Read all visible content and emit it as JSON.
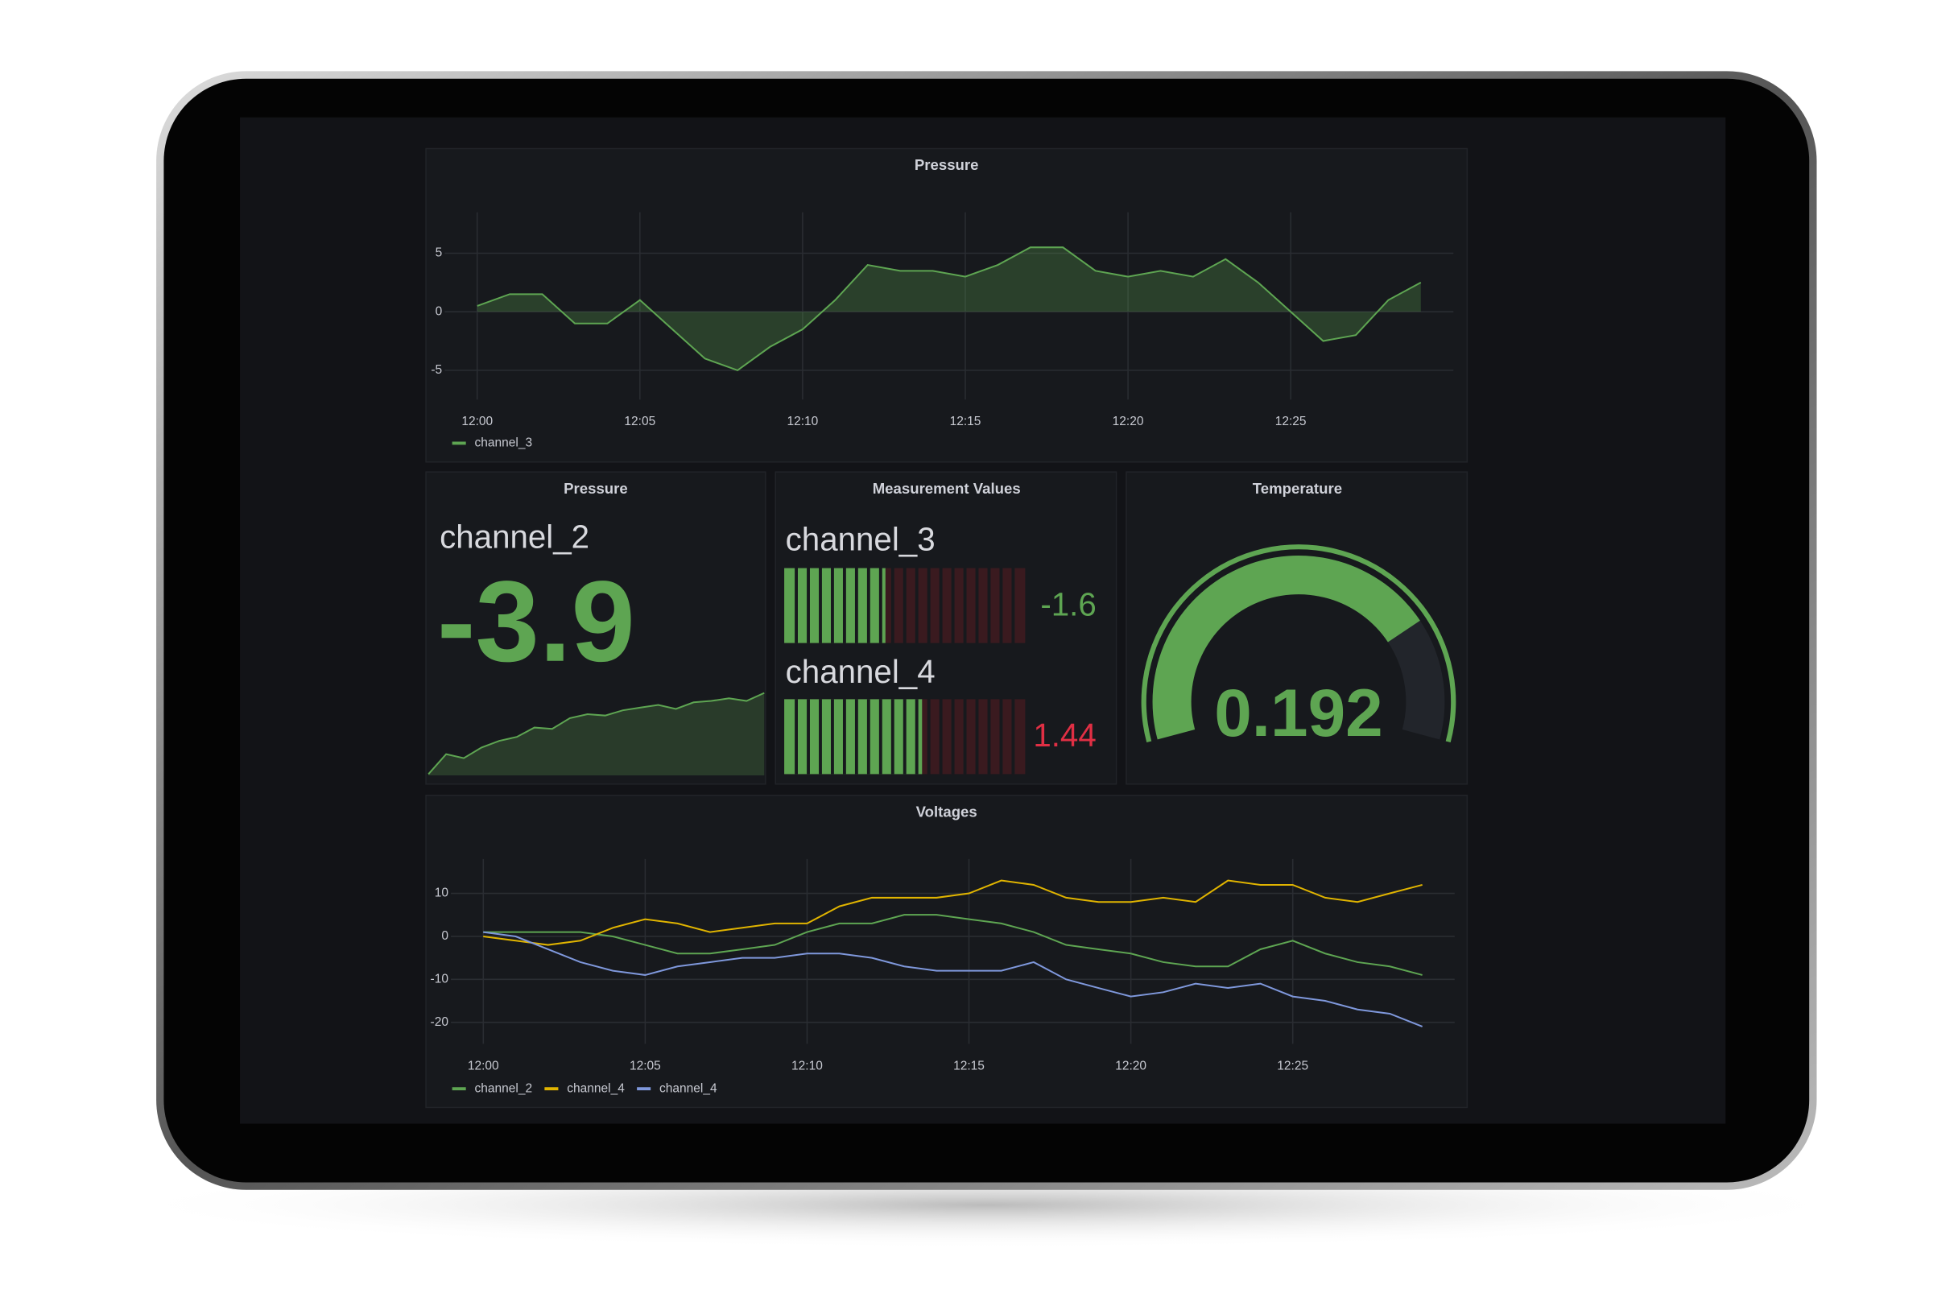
{
  "chart_data": [
    {
      "type": "area",
      "title": "Pressure",
      "x": [
        "12:00",
        "12:01",
        "12:02",
        "12:03",
        "12:04",
        "12:05",
        "12:06",
        "12:07",
        "12:08",
        "12:09",
        "12:10",
        "12:11",
        "12:12",
        "12:13",
        "12:14",
        "12:15",
        "12:16",
        "12:17",
        "12:18",
        "12:19",
        "12:20",
        "12:21",
        "12:22",
        "12:23",
        "12:24",
        "12:25",
        "12:26",
        "12:27",
        "12:28",
        "12:29"
      ],
      "series": [
        {
          "name": "channel_3",
          "color": "#5ea552",
          "values": [
            0.5,
            1.5,
            1.5,
            -1,
            -1,
            1,
            -1.5,
            -4,
            -5,
            -3,
            -1.5,
            1,
            4,
            3.5,
            3.5,
            3,
            4,
            5.5,
            5.5,
            3.5,
            3,
            3.5,
            3,
            4.5,
            2.5,
            0,
            -2.5,
            -2,
            1,
            2.5
          ]
        }
      ],
      "xlim": [
        "11:59",
        "12:30"
      ],
      "xticks": [
        "12:00",
        "12:05",
        "12:10",
        "12:15",
        "12:20",
        "12:25"
      ],
      "ylim": [
        -7.5,
        8.5
      ],
      "yticks": [
        -5,
        0,
        5
      ],
      "grid": true,
      "legend": "bottom-left"
    },
    {
      "type": "line",
      "title": "Voltages",
      "x": [
        "12:00",
        "12:01",
        "12:02",
        "12:03",
        "12:04",
        "12:05",
        "12:06",
        "12:07",
        "12:08",
        "12:09",
        "12:10",
        "12:11",
        "12:12",
        "12:13",
        "12:14",
        "12:15",
        "12:16",
        "12:17",
        "12:18",
        "12:19",
        "12:20",
        "12:21",
        "12:22",
        "12:23",
        "12:24",
        "12:25",
        "12:26",
        "12:27",
        "12:28",
        "12:29"
      ],
      "series": [
        {
          "name": "channel_2",
          "color": "#5ea552",
          "values": [
            1,
            1,
            1,
            1,
            0,
            -2,
            -4,
            -4,
            -3,
            -2,
            1,
            3,
            3,
            5,
            5,
            4,
            3,
            1,
            -2,
            -3,
            -4,
            -6,
            -7,
            -7,
            -3,
            -1,
            -4,
            -6,
            -7,
            -9
          ]
        },
        {
          "name": "channel_4",
          "color": "#e0b400",
          "values": [
            0,
            -1,
            -2,
            -1,
            2,
            4,
            3,
            1,
            2,
            3,
            3,
            7,
            9,
            9,
            9,
            10,
            13,
            12,
            9,
            8,
            8,
            9,
            8,
            13,
            12,
            12,
            9,
            8,
            10,
            12
          ]
        },
        {
          "name": "channel_4",
          "color": "#7f98dc",
          "values": [
            1,
            0,
            -3,
            -6,
            -8,
            -9,
            -7,
            -6,
            -5,
            -5,
            -4,
            -4,
            -5,
            -7,
            -8,
            -8,
            -8,
            -6,
            -10,
            -12,
            -14,
            -13,
            -11,
            -12,
            -11,
            -14,
            -15,
            -17,
            -18,
            -21
          ]
        }
      ],
      "xlim": [
        "11:59",
        "12:30"
      ],
      "xticks": [
        "12:00",
        "12:05",
        "12:10",
        "12:15",
        "12:20",
        "12:25"
      ],
      "ylim": [
        -25,
        18
      ],
      "yticks": [
        -20,
        -10,
        0,
        10
      ],
      "grid": true,
      "legend": "bottom-left"
    }
  ],
  "stat": {
    "title": "Pressure",
    "name": "channel_2",
    "value": -3.9,
    "color": "#5ea552",
    "sparkline": [
      -10,
      -8.5,
      -8.8,
      -8,
      -7.5,
      -7.2,
      -6.5,
      -6.6,
      -5.8,
      -5.5,
      -5.6,
      -5.2,
      -5,
      -4.8,
      -5.1,
      -4.6,
      -4.5,
      -4.3,
      -4.5,
      -3.9
    ]
  },
  "bar_gauge": {
    "title": "Measurement Values",
    "lim": [
      -10,
      10
    ],
    "bar_color": "#5ea552",
    "items": [
      {
        "name": "channel_3",
        "value": -1.6,
        "color": "#5ea552"
      },
      {
        "name": "channel_4",
        "value": 1.44,
        "color": "#e02f44"
      }
    ]
  },
  "gauge": {
    "title": "Temperature",
    "value": 0.192,
    "lim": [
      0,
      0.25
    ],
    "color": "#5ea552"
  }
}
